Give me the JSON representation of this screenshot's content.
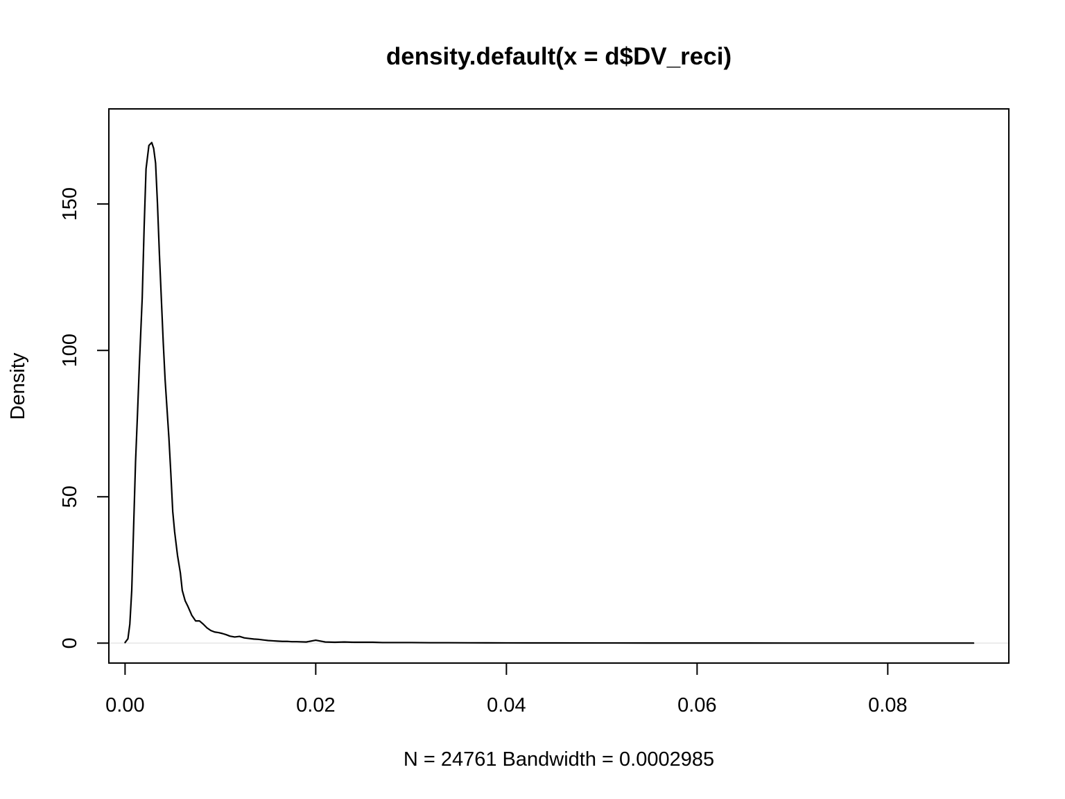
{
  "chart_data": {
    "type": "line",
    "title": "density.default(x = d$DV_reci)",
    "xlabel": "N = 24761   Bandwidth = 0.0002985",
    "ylabel": "Density",
    "xlim": [
      -0.0017,
      0.0927
    ],
    "ylim": [
      -6.8,
      182.5
    ],
    "x_ticks": [
      0.0,
      0.02,
      0.04,
      0.06,
      0.08
    ],
    "x_tick_labels": [
      "0.00",
      "0.02",
      "0.04",
      "0.06",
      "0.08"
    ],
    "y_ticks": [
      0,
      50,
      100,
      150
    ],
    "y_tick_labels": [
      "0",
      "50",
      "100",
      "150"
    ],
    "grid": false,
    "legend": "none",
    "baseline": 0,
    "colors": {
      "line": "#000000",
      "baseline": "#e6e6e6",
      "axis": "#000000"
    },
    "series": [
      {
        "x": [
          0.0,
          0.0003,
          0.0005,
          0.0007,
          0.0009,
          0.0011,
          0.0013,
          0.0015,
          0.0018,
          0.002,
          0.0022,
          0.0025,
          0.0028,
          0.003,
          0.0032,
          0.0034,
          0.0036,
          0.0038,
          0.004,
          0.0042,
          0.0044,
          0.0046,
          0.0048,
          0.005,
          0.0052,
          0.0055,
          0.0058,
          0.006,
          0.0063,
          0.0066,
          0.007,
          0.0074,
          0.0078,
          0.0082,
          0.0086,
          0.009,
          0.0094,
          0.0098,
          0.0102,
          0.0106,
          0.011,
          0.0115,
          0.012,
          0.0125,
          0.013,
          0.0135,
          0.014,
          0.0145,
          0.015,
          0.0155,
          0.016,
          0.0165,
          0.017,
          0.0175,
          0.018,
          0.019,
          0.02,
          0.021,
          0.022,
          0.023,
          0.024,
          0.025,
          0.026,
          0.027,
          0.028,
          0.029,
          0.03,
          0.032,
          0.034,
          0.036,
          0.038,
          0.04,
          0.045,
          0.05,
          0.055,
          0.06,
          0.065,
          0.07,
          0.075,
          0.08,
          0.085,
          0.089
        ],
        "values": [
          0.2,
          1.5,
          6.5,
          18,
          40,
          62,
          78,
          95,
          118,
          142,
          162,
          170,
          171,
          169,
          164,
          150,
          133,
          118,
          103,
          90,
          80,
          70,
          58,
          45,
          38,
          30,
          24,
          18,
          14.5,
          12.5,
          9.5,
          7.6,
          7.6,
          6.5,
          5.2,
          4.3,
          3.8,
          3.6,
          3.3,
          2.9,
          2.4,
          2.1,
          2.3,
          1.8,
          1.6,
          1.4,
          1.3,
          1.1,
          0.9,
          0.8,
          0.7,
          0.6,
          0.6,
          0.5,
          0.5,
          0.4,
          1.0,
          0.4,
          0.3,
          0.4,
          0.3,
          0.3,
          0.3,
          0.2,
          0.2,
          0.2,
          0.2,
          0.15,
          0.15,
          0.12,
          0.1,
          0.08,
          0.07,
          0.06,
          0.05,
          0.05,
          0.04,
          0.03,
          0.03,
          0.02,
          0.02,
          0.02
        ]
      }
    ]
  }
}
